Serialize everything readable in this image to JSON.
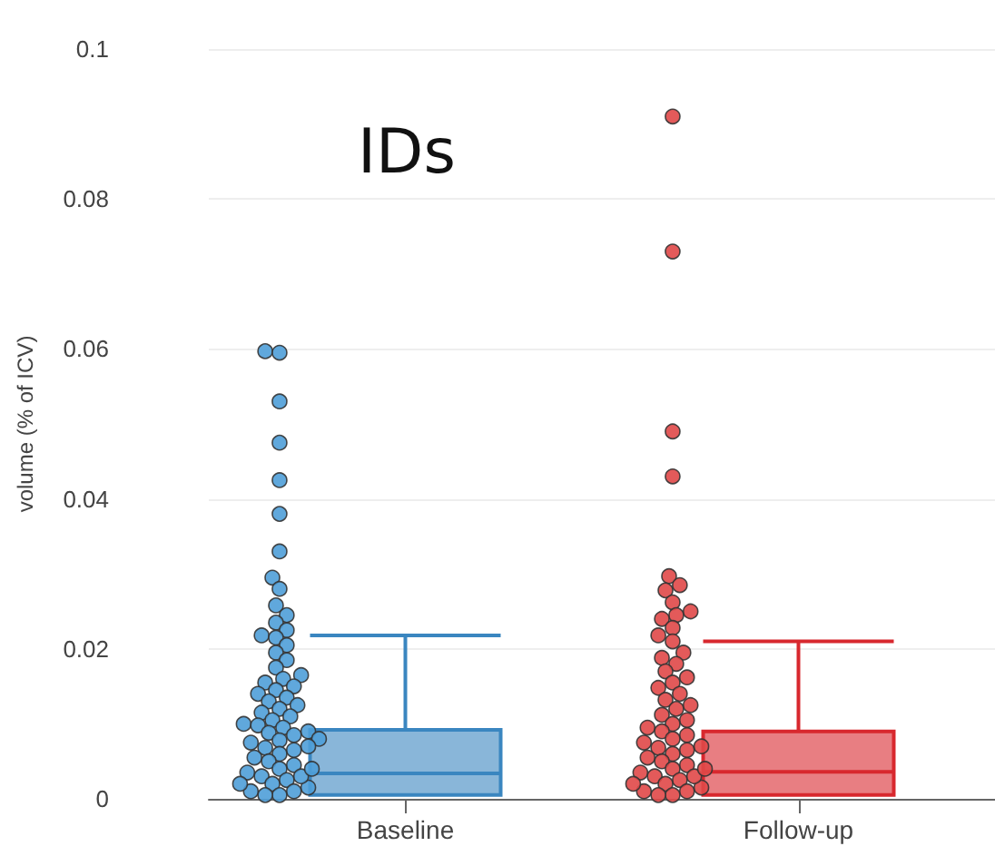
{
  "chart_data": {
    "type": "box",
    "title": "IDs",
    "ylabel": "volume (% of ICV)",
    "categories": [
      "Baseline",
      "Follow-up"
    ],
    "ylim": [
      0,
      0.1
    ],
    "yticks": [
      0,
      0.02,
      0.04,
      0.06,
      0.08,
      0.1
    ],
    "grid": "y",
    "marker": "circle",
    "boxes": [
      {
        "low": 0.0005,
        "q1": 0.0005,
        "median": 0.0034,
        "q3": 0.0092,
        "high": 0.0218
      },
      {
        "low": 0.0005,
        "q1": 0.0005,
        "median": 0.0036,
        "q3": 0.009,
        "high": 0.021
      }
    ],
    "colors": [
      "#3a86c0",
      "#d8282e"
    ],
    "series": [
      {
        "type": "scatter",
        "color": "#4f9fd8",
        "x": [
          "Baseline",
          "Baseline",
          "Baseline",
          "Baseline",
          "Baseline",
          "Baseline",
          "Baseline",
          "Baseline",
          "Baseline",
          "Baseline",
          "Baseline",
          "Baseline",
          "Baseline",
          "Baseline",
          "Baseline",
          "Baseline",
          "Baseline",
          "Baseline",
          "Baseline",
          "Baseline",
          "Baseline",
          "Baseline",
          "Baseline",
          "Baseline",
          "Baseline",
          "Baseline",
          "Baseline",
          "Baseline",
          "Baseline",
          "Baseline",
          "Baseline",
          "Baseline",
          "Baseline",
          "Baseline",
          "Baseline",
          "Baseline",
          "Baseline",
          "Baseline",
          "Baseline",
          "Baseline",
          "Baseline",
          "Baseline",
          "Baseline",
          "Baseline",
          "Baseline",
          "Baseline",
          "Baseline",
          "Baseline",
          "Baseline",
          "Baseline",
          "Baseline",
          "Baseline",
          "Baseline",
          "Baseline",
          "Baseline",
          "Baseline",
          "Baseline",
          "Baseline",
          "Baseline",
          "Baseline",
          "Baseline"
        ],
        "values": [
          0.0597,
          0.0595,
          0.053,
          0.0475,
          0.0425,
          0.038,
          0.033,
          0.0295,
          0.028,
          0.0258,
          0.0245,
          0.0235,
          0.0225,
          0.0218,
          0.0215,
          0.0205,
          0.0195,
          0.0185,
          0.0175,
          0.0165,
          0.016,
          0.0155,
          0.015,
          0.0145,
          0.014,
          0.0135,
          0.013,
          0.0125,
          0.012,
          0.0115,
          0.011,
          0.0105,
          0.01,
          0.0098,
          0.0095,
          0.009,
          0.0088,
          0.0085,
          0.008,
          0.0078,
          0.0075,
          0.007,
          0.0068,
          0.0065,
          0.006,
          0.0055,
          0.005,
          0.0045,
          0.004,
          0.0035,
          0.003,
          0.0025,
          0.002,
          0.0015,
          0.001,
          0.0005,
          0.0005,
          0.001,
          0.002,
          0.003,
          0.004
        ]
      },
      {
        "type": "scatter",
        "color": "#e04848",
        "x": [
          "Follow-up",
          "Follow-up",
          "Follow-up",
          "Follow-up",
          "Follow-up",
          "Follow-up",
          "Follow-up",
          "Follow-up",
          "Follow-up",
          "Follow-up",
          "Follow-up",
          "Follow-up",
          "Follow-up",
          "Follow-up",
          "Follow-up",
          "Follow-up",
          "Follow-up",
          "Follow-up",
          "Follow-up",
          "Follow-up",
          "Follow-up",
          "Follow-up",
          "Follow-up",
          "Follow-up",
          "Follow-up",
          "Follow-up",
          "Follow-up",
          "Follow-up",
          "Follow-up",
          "Follow-up",
          "Follow-up",
          "Follow-up",
          "Follow-up",
          "Follow-up",
          "Follow-up",
          "Follow-up",
          "Follow-up",
          "Follow-up",
          "Follow-up",
          "Follow-up",
          "Follow-up",
          "Follow-up",
          "Follow-up",
          "Follow-up",
          "Follow-up",
          "Follow-up",
          "Follow-up",
          "Follow-up",
          "Follow-up",
          "Follow-up",
          "Follow-up",
          "Follow-up",
          "Follow-up"
        ],
        "values": [
          0.091,
          0.073,
          0.049,
          0.043,
          0.0297,
          0.0285,
          0.0278,
          0.0262,
          0.025,
          0.0245,
          0.024,
          0.0228,
          0.0218,
          0.021,
          0.0195,
          0.0188,
          0.018,
          0.017,
          0.0162,
          0.0155,
          0.0148,
          0.014,
          0.0132,
          0.0125,
          0.012,
          0.0112,
          0.0105,
          0.01,
          0.0095,
          0.009,
          0.0085,
          0.008,
          0.0075,
          0.007,
          0.0068,
          0.0065,
          0.006,
          0.0055,
          0.005,
          0.0045,
          0.004,
          0.0035,
          0.003,
          0.0025,
          0.002,
          0.0015,
          0.001,
          0.0005,
          0.0005,
          0.001,
          0.002,
          0.003,
          0.004
        ]
      }
    ]
  }
}
